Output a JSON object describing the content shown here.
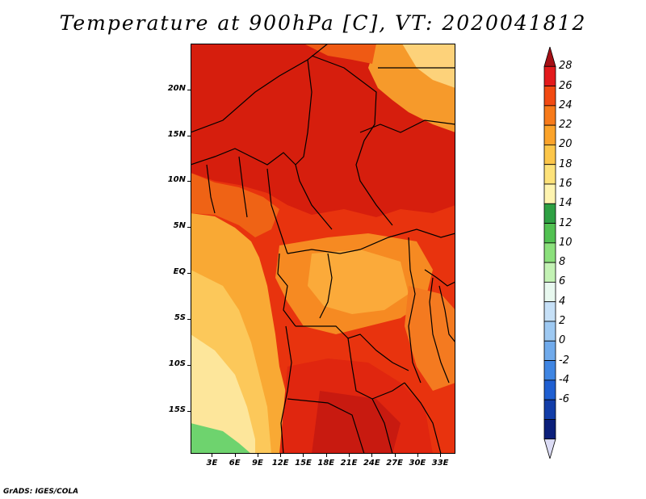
{
  "title": "Temperature at 900hPa [C], VT: 2020041812",
  "credit": "GrADS: IGES/COLA",
  "map": {
    "lat_labels": [
      "20N",
      "15N",
      "10N",
      "5N",
      "EQ",
      "5S",
      "10S",
      "15S"
    ],
    "lat_values": [
      20,
      15,
      10,
      5,
      0,
      -5,
      -10,
      -15
    ],
    "lon_labels": [
      "3E",
      "6E",
      "9E",
      "12E",
      "15E",
      "18E",
      "21E",
      "24E",
      "27E",
      "30E",
      "33E"
    ],
    "lon_values": [
      3,
      6,
      9,
      12,
      15,
      18,
      21,
      24,
      27,
      30,
      33
    ],
    "lat_range": [
      -19.7,
      25
    ],
    "lon_range": [
      0.2,
      35
    ]
  },
  "colorbar": {
    "labels": [
      "28",
      "26",
      "24",
      "22",
      "20",
      "18",
      "16",
      "14",
      "12",
      "10",
      "8",
      "6",
      "4",
      "2",
      "0",
      "-2",
      "-4",
      "-6"
    ],
    "colors": [
      "#a50f15",
      "#e31a1c",
      "#f24a12",
      "#f77a1a",
      "#fba32a",
      "#fcc64a",
      "#fde27a",
      "#fef4b0",
      "#2ea043",
      "#52c152",
      "#8be07c",
      "#c3f2b4",
      "#e8f8ef",
      "#c6e0f7",
      "#9ec9f2",
      "#70aaeb",
      "#3f85e2",
      "#1f5fd1",
      "#123da8",
      "#0b1f7a",
      "#dcdcf5"
    ]
  }
}
